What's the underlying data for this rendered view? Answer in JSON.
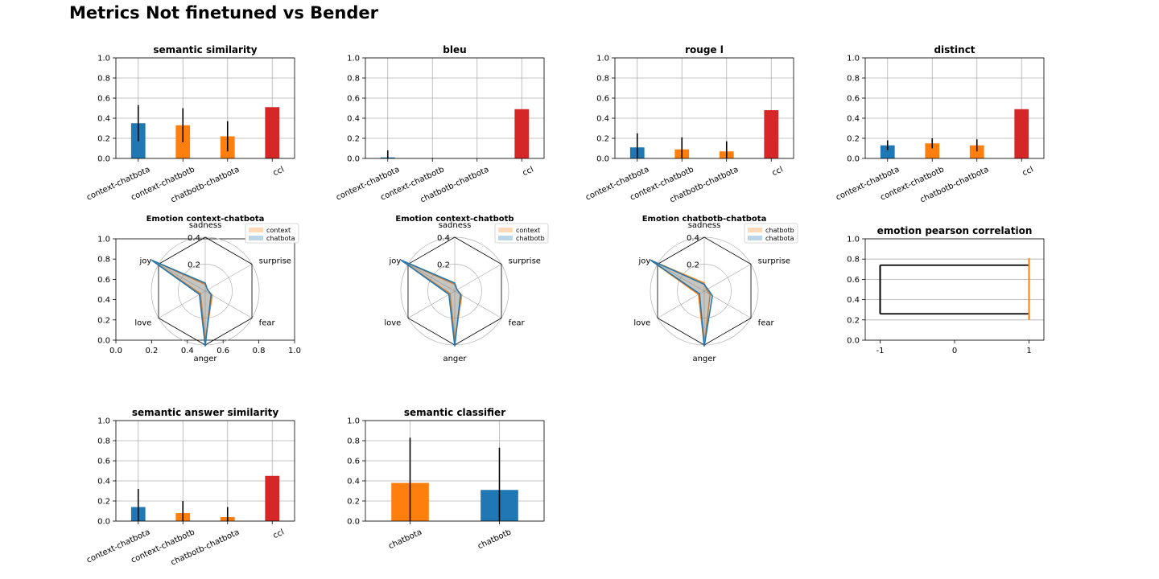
{
  "figure": {
    "title": "Metrics Not finetuned vs Bender"
  },
  "colors": {
    "blue": "#1f77b4",
    "orange": "#ff7f0e",
    "red": "#d62728",
    "black": "#000000",
    "grid": "#b0b0b0"
  },
  "chart_data": [
    {
      "id": "semantic-similarity",
      "type": "bar",
      "title": "semantic similarity",
      "categories": [
        "context-chatbota",
        "context-chatbotb",
        "chatbotb-chatbota",
        "ccl"
      ],
      "values": [
        0.35,
        0.33,
        0.22,
        0.51
      ],
      "errors": [
        0.18,
        0.17,
        0.15,
        0
      ],
      "colors": [
        "blue",
        "orange",
        "orange",
        "red"
      ],
      "ylim": [
        0,
        1
      ],
      "yticks": [
        "0.0",
        "0.2",
        "0.4",
        "0.6",
        "0.8",
        "1.0"
      ],
      "grid": true
    },
    {
      "id": "bleu",
      "type": "bar",
      "title": "bleu",
      "categories": [
        "context-chatbota",
        "context-chatbotb",
        "chatbotb-chatbota",
        "ccl"
      ],
      "values": [
        0.01,
        0.0,
        0.0,
        0.49
      ],
      "errors": [
        0.07,
        0.005,
        0,
        0
      ],
      "colors": [
        "blue",
        "orange",
        "orange",
        "red"
      ],
      "ylim": [
        0,
        1
      ],
      "yticks": [
        "0.0",
        "0.2",
        "0.4",
        "0.6",
        "0.8",
        "1.0"
      ],
      "grid": true
    },
    {
      "id": "rouge-l",
      "type": "bar",
      "title": "rouge l",
      "categories": [
        "context-chatbota",
        "context-chatbotb",
        "chatbotb-chatbota",
        "ccl"
      ],
      "values": [
        0.11,
        0.09,
        0.07,
        0.48
      ],
      "errors": [
        0.14,
        0.12,
        0.1,
        0
      ],
      "colors": [
        "blue",
        "orange",
        "orange",
        "red"
      ],
      "ylim": [
        0,
        1
      ],
      "yticks": [
        "0.0",
        "0.2",
        "0.4",
        "0.6",
        "0.8",
        "1.0"
      ],
      "grid": true
    },
    {
      "id": "distinct",
      "type": "bar",
      "title": "distinct",
      "categories": [
        "context-chatbota",
        "context-chatbotb",
        "chatbotb-chatbota",
        "ccl"
      ],
      "values": [
        0.13,
        0.15,
        0.13,
        0.49
      ],
      "errors": [
        0.05,
        0.05,
        0.06,
        0
      ],
      "colors": [
        "blue",
        "orange",
        "orange",
        "red"
      ],
      "ylim": [
        0,
        1
      ],
      "yticks": [
        "0.0",
        "0.2",
        "0.4",
        "0.6",
        "0.8",
        "1.0"
      ],
      "grid": true
    },
    {
      "id": "emotion-context-chatbota",
      "type": "radar",
      "title": "Emotion context-chatbota",
      "axes": [
        "sadness",
        "surprise",
        "fear",
        "anger",
        "love",
        "joy"
      ],
      "rticks": [
        "0.2",
        "0.4"
      ],
      "rmax": 0.4,
      "series": [
        {
          "name": "context",
          "color": "orange",
          "values": [
            0.05,
            0.02,
            0.06,
            0.37,
            0.04,
            0.46
          ]
        },
        {
          "name": "chatbota",
          "color": "blue",
          "values": [
            0.06,
            0.02,
            0.05,
            0.41,
            0.05,
            0.46
          ]
        }
      ],
      "show_cartesian_frame": true,
      "frame_ticks": {
        "x": [
          "0.0",
          "0.2",
          "0.4",
          "0.6",
          "0.8",
          "1.0"
        ],
        "y": [
          "0.0",
          "0.2",
          "0.4",
          "0.6",
          "0.8",
          "1.0"
        ]
      },
      "legend": "upper-right"
    },
    {
      "id": "emotion-context-chatbotb",
      "type": "radar",
      "title": "Emotion context-chatbotb",
      "axes": [
        "sadness",
        "surprise",
        "fear",
        "anger",
        "love",
        "joy"
      ],
      "rticks": [
        "0.2",
        "0.4"
      ],
      "rmax": 0.4,
      "series": [
        {
          "name": "context",
          "color": "orange",
          "values": [
            0.05,
            0.02,
            0.06,
            0.37,
            0.04,
            0.46
          ]
        },
        {
          "name": "chatbotb",
          "color": "blue",
          "values": [
            0.06,
            0.02,
            0.05,
            0.41,
            0.05,
            0.46
          ]
        }
      ],
      "show_cartesian_frame": false,
      "legend": "upper-right"
    },
    {
      "id": "emotion-chatbotb-chatbota",
      "type": "radar",
      "title": "Emotion chatbotb-chatbota",
      "axes": [
        "sadness",
        "surprise",
        "fear",
        "anger",
        "love",
        "joy"
      ],
      "rticks": [
        "0.2",
        "0.4"
      ],
      "rmax": 0.4,
      "series": [
        {
          "name": "chatbotb",
          "color": "orange",
          "values": [
            0.06,
            0.02,
            0.05,
            0.41,
            0.05,
            0.46
          ]
        },
        {
          "name": "chatbota",
          "color": "blue",
          "values": [
            0.05,
            0.03,
            0.07,
            0.41,
            0.04,
            0.46
          ]
        }
      ],
      "show_cartesian_frame": false,
      "legend": "upper-right"
    },
    {
      "id": "emotion-pearson-correlation",
      "type": "errorbar",
      "title": "emotion pearson correlation",
      "xlim": [
        -1.2,
        1.2
      ],
      "xticks": [
        -1,
        0,
        1
      ],
      "xticklabels": [
        "-1",
        "0",
        "1"
      ],
      "ylim": [
        0,
        1
      ],
      "yticks": [
        "0.0",
        "0.2",
        "0.4",
        "0.6",
        "0.8",
        "1.0"
      ],
      "grid": true,
      "lines": [
        {
          "y": 0.74,
          "x0": -1,
          "x1": 1,
          "color": "black"
        },
        {
          "y": 0.26,
          "x0": -1,
          "x1": 1,
          "color": "black"
        }
      ],
      "vlines": [
        {
          "x": -1,
          "y0": 0.26,
          "y1": 0.74,
          "color": "black"
        },
        {
          "x": 1,
          "y0": 0.2,
          "y1": 0.81,
          "color": "orange"
        }
      ]
    },
    {
      "id": "semantic-answer-similarity",
      "type": "bar",
      "title": "semantic answer similarity",
      "categories": [
        "context-chatbota",
        "context-chatbotb",
        "chatbotb-chatbota",
        "ccl"
      ],
      "values": [
        0.14,
        0.08,
        0.04,
        0.45
      ],
      "errors": [
        0.18,
        0.12,
        0.1,
        0
      ],
      "colors": [
        "blue",
        "orange",
        "orange",
        "red"
      ],
      "ylim": [
        0,
        1
      ],
      "yticks": [
        "0.0",
        "0.2",
        "0.4",
        "0.6",
        "0.8",
        "1.0"
      ],
      "grid": true
    },
    {
      "id": "semantic-classifier",
      "type": "bar",
      "title": "semantic classifier",
      "categories": [
        "chatbota",
        "chatbotb"
      ],
      "values": [
        0.38,
        0.31
      ],
      "errors": [
        0.45,
        0.42
      ],
      "colors": [
        "orange",
        "blue"
      ],
      "ylim": [
        0,
        1
      ],
      "yticks": [
        "0.0",
        "0.2",
        "0.4",
        "0.6",
        "0.8",
        "1.0"
      ],
      "grid": true
    }
  ]
}
